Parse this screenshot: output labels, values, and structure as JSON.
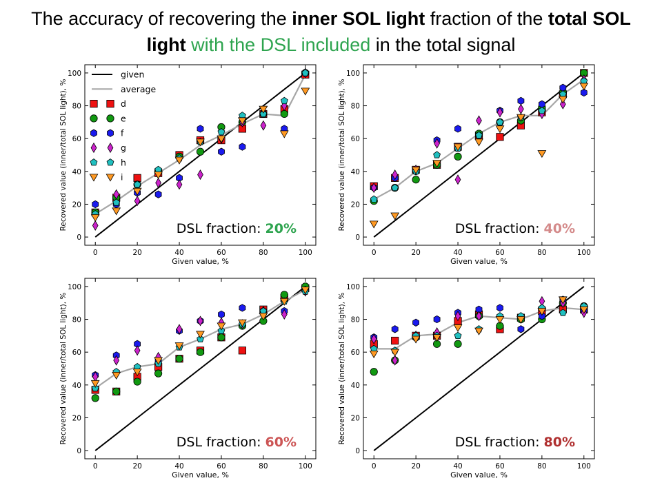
{
  "title": {
    "p1": "The accuracy of recovering the ",
    "p2": "inner SOL light",
    "p3": " fraction of the ",
    "p4": "total SOL",
    "p5": "light",
    "p6": " with the DSL included",
    "p7": " in the total signal"
  },
  "colors": {
    "given": "#000000",
    "average": "#a6a6a6",
    "d": "#ee1111",
    "e": "#119911",
    "f": "#1a1aee",
    "g": "#cc22cc",
    "h": "#20c0c0",
    "i": "#ff9922",
    "dsl_20": "#2ea44f",
    "dsl_40": "#d48a8a",
    "dsl_60": "#cc5555",
    "dsl_80": "#b03030"
  },
  "legend": {
    "given": "given",
    "average": "average",
    "d": "d",
    "e": "e",
    "f": "f",
    "g": "g",
    "h": "h",
    "i": "i"
  },
  "chart_data": [
    {
      "type": "scatter",
      "dsl_label": "DSL fraction:",
      "dsl_value": "20%",
      "dsl_color_key": "dsl_20",
      "show_legend": true,
      "xlabel": "Given value, %",
      "ylabel": "Recovered value (inner/total SOL light), %",
      "xlim": [
        -5,
        105
      ],
      "ylim": [
        -5,
        105
      ],
      "xticks": [
        0,
        20,
        40,
        60,
        80,
        100
      ],
      "yticks": [
        0,
        20,
        40,
        60,
        80,
        100
      ],
      "x": [
        0,
        10,
        20,
        30,
        40,
        50,
        60,
        70,
        80,
        90,
        100
      ],
      "given": [
        0,
        10,
        20,
        30,
        40,
        50,
        60,
        70,
        80,
        90,
        100
      ],
      "average": [
        14,
        22,
        31,
        39,
        47,
        56,
        62,
        69,
        75,
        74,
        99
      ],
      "series": [
        {
          "name": "d",
          "marker": "square",
          "values": [
            15,
            24,
            36,
            39,
            50,
            59,
            59,
            66,
            75,
            78,
            99
          ]
        },
        {
          "name": "e",
          "marker": "circle",
          "values": [
            15,
            24,
            32,
            40,
            49,
            52,
            67,
            70,
            75,
            75,
            100
          ]
        },
        {
          "name": "f",
          "marker": "hexagon",
          "values": [
            20,
            20,
            27,
            26,
            36,
            66,
            52,
            55,
            75,
            66,
            100
          ]
        },
        {
          "name": "g",
          "marker": "diamond",
          "values": [
            7,
            26,
            22,
            33,
            32,
            38,
            60,
            70,
            68,
            80,
            100
          ]
        },
        {
          "name": "h",
          "marker": "pentagon",
          "values": [
            14,
            21,
            32,
            41,
            48,
            58,
            64,
            74,
            75,
            83,
            100
          ]
        },
        {
          "name": "i",
          "marker": "triangle",
          "values": [
            12,
            16,
            28,
            38,
            47,
            58,
            60,
            71,
            78,
            63,
            89
          ]
        }
      ]
    },
    {
      "type": "scatter",
      "dsl_label": "DSL fraction:",
      "dsl_value": "40%",
      "dsl_color_key": "dsl_40",
      "show_legend": false,
      "xlabel": "Given value, %",
      "ylabel": "Recovered value (inner/total SOL light), %",
      "xlim": [
        -5,
        105
      ],
      "ylim": [
        -5,
        105
      ],
      "xticks": [
        0,
        20,
        40,
        60,
        80,
        100
      ],
      "yticks": [
        0,
        20,
        40,
        60,
        80,
        100
      ],
      "x": [
        0,
        10,
        20,
        30,
        40,
        50,
        60,
        70,
        80,
        90,
        100
      ],
      "given": [
        0,
        10,
        20,
        30,
        40,
        50,
        60,
        70,
        80,
        90,
        100
      ],
      "average": [
        23,
        30,
        40,
        45,
        54,
        63,
        70,
        74,
        74,
        87,
        96
      ],
      "series": [
        {
          "name": "d",
          "marker": "square",
          "values": [
            31,
            36,
            41,
            44,
            55,
            62,
            61,
            68,
            76,
            87,
            100
          ]
        },
        {
          "name": "e",
          "marker": "circle",
          "values": [
            22,
            30,
            35,
            44,
            49,
            63,
            70,
            71,
            79,
            88,
            100
          ]
        },
        {
          "name": "f",
          "marker": "hexagon",
          "values": [
            30,
            36,
            40,
            59,
            66,
            62,
            77,
            83,
            81,
            91,
            88
          ]
        },
        {
          "name": "g",
          "marker": "diamond",
          "values": [
            30,
            38,
            41,
            57,
            35,
            71,
            76,
            78,
            75,
            81,
            96
          ]
        },
        {
          "name": "h",
          "marker": "pentagon",
          "values": [
            23,
            30,
            40,
            50,
            54,
            62,
            70,
            73,
            77,
            87,
            95
          ]
        },
        {
          "name": "i",
          "marker": "triangle",
          "values": [
            8,
            13,
            41,
            45,
            55,
            58,
            66,
            73,
            51,
            84,
            92
          ]
        }
      ]
    },
    {
      "type": "scatter",
      "dsl_label": "DSL fraction:",
      "dsl_value": "60%",
      "dsl_color_key": "dsl_60",
      "show_legend": false,
      "xlabel": "Given value, %",
      "ylabel": "Recovered value (inner/total SOL light), %",
      "xlim": [
        -5,
        105
      ],
      "ylim": [
        -5,
        105
      ],
      "xticks": [
        0,
        20,
        40,
        60,
        80,
        100
      ],
      "yticks": [
        0,
        20,
        40,
        60,
        80,
        100
      ],
      "x": [
        0,
        10,
        20,
        30,
        40,
        50,
        60,
        70,
        80,
        90,
        100
      ],
      "given": [
        0,
        10,
        20,
        30,
        40,
        50,
        60,
        70,
        80,
        90,
        100
      ],
      "average": [
        38,
        47,
        51,
        53,
        63,
        68,
        74,
        77,
        83,
        91,
        98
      ],
      "series": [
        {
          "name": "d",
          "marker": "square",
          "values": [
            37,
            36,
            45,
            51,
            56,
            61,
            69,
            61,
            86,
            93,
            99
          ]
        },
        {
          "name": "e",
          "marker": "circle",
          "values": [
            32,
            36,
            42,
            47,
            56,
            60,
            69,
            76,
            79,
            95,
            100
          ]
        },
        {
          "name": "f",
          "marker": "hexagon",
          "values": [
            46,
            58,
            65,
            55,
            73,
            79,
            83,
            87,
            85,
            85,
            98
          ]
        },
        {
          "name": "g",
          "marker": "diamond",
          "values": [
            45,
            55,
            61,
            57,
            74,
            79,
            78,
            77,
            85,
            83,
            97
          ]
        },
        {
          "name": "h",
          "marker": "pentagon",
          "values": [
            38,
            48,
            51,
            53,
            63,
            68,
            73,
            77,
            85,
            91,
            97
          ]
        },
        {
          "name": "i",
          "marker": "triangle",
          "values": [
            41,
            46,
            48,
            55,
            64,
            71,
            76,
            78,
            82,
            91,
            98
          ]
        }
      ]
    },
    {
      "type": "scatter",
      "dsl_label": "DSL fraction:",
      "dsl_value": "80%",
      "dsl_color_key": "dsl_80",
      "show_legend": false,
      "xlabel": "Given value, %",
      "ylabel": "Recovered value (inner/total SOL light), %",
      "xlim": [
        -5,
        105
      ],
      "ylim": [
        -5,
        105
      ],
      "xticks": [
        0,
        20,
        40,
        60,
        80,
        100
      ],
      "yticks": [
        0,
        20,
        40,
        60,
        80,
        100
      ],
      "x": [
        0,
        10,
        20,
        30,
        40,
        50,
        60,
        70,
        80,
        90,
        100
      ],
      "given": [
        0,
        10,
        20,
        30,
        40,
        50,
        60,
        70,
        80,
        90,
        100
      ],
      "average": [
        62,
        62,
        70,
        71,
        78,
        82,
        81,
        80,
        85,
        87,
        86
      ],
      "series": [
        {
          "name": "d",
          "marker": "square",
          "values": [
            65,
            67,
            70,
            70,
            79,
            83,
            74,
            81,
            85,
            86,
            86
          ]
        },
        {
          "name": "e",
          "marker": "circle",
          "values": [
            48,
            55,
            69,
            65,
            65,
            82,
            76,
            80,
            80,
            90,
            88
          ]
        },
        {
          "name": "f",
          "marker": "hexagon",
          "values": [
            69,
            74,
            78,
            80,
            84,
            86,
            87,
            74,
            82,
            92,
            85
          ]
        },
        {
          "name": "g",
          "marker": "diamond",
          "values": [
            68,
            55,
            70,
            72,
            82,
            82,
            81,
            81,
            91,
            90,
            84
          ]
        },
        {
          "name": "h",
          "marker": "pentagon",
          "values": [
            62,
            61,
            70,
            70,
            70,
            74,
            82,
            82,
            87,
            84,
            88
          ]
        },
        {
          "name": "i",
          "marker": "triangle",
          "values": [
            59,
            60,
            68,
            69,
            75,
            73,
            80,
            80,
            85,
            92,
            86
          ]
        }
      ]
    }
  ]
}
